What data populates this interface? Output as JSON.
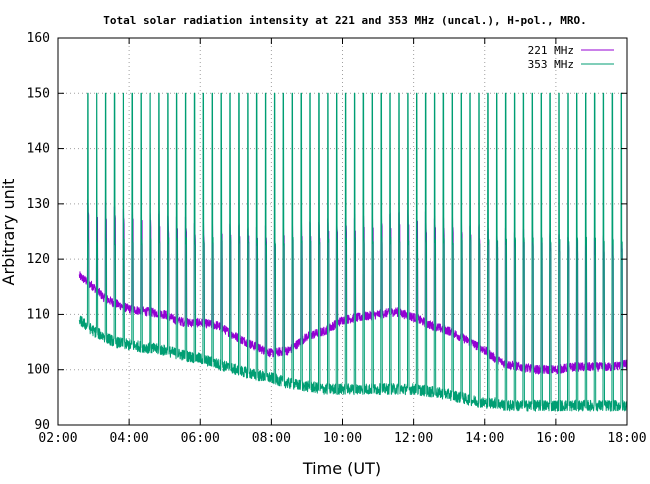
{
  "chart_data": {
    "type": "line",
    "title": "Total solar radiation intensity at 221 and 353 MHz (uncal.), H-pol., MRO.",
    "xlabel": "Time (UT)",
    "ylabel": "Arbitrary unit",
    "x_unit": "hours UT",
    "xlim": [
      2,
      18
    ],
    "ylim": [
      90,
      160
    ],
    "x_ticks": [
      2,
      4,
      6,
      8,
      10,
      12,
      14,
      16,
      18
    ],
    "x_tick_labels": [
      "02:00",
      "04:00",
      "06:00",
      "08:00",
      "10:00",
      "12:00",
      "14:00",
      "16:00",
      "18:00"
    ],
    "y_ticks": [
      90,
      100,
      110,
      120,
      130,
      140,
      150,
      160
    ],
    "y_tick_labels": [
      "90",
      "100",
      "110",
      "120",
      "130",
      "140",
      "150",
      "160"
    ],
    "grid": "dotted",
    "legend_position": "top-right",
    "spikes": {
      "interval_minutes": 15,
      "first_x": 2.83,
      "last_x": 18.0,
      "peak_353": 150,
      "peak_221": [
        [
          2.83,
          131
        ],
        [
          4,
          130
        ],
        [
          6,
          127
        ],
        [
          8,
          126
        ],
        [
          10,
          128
        ],
        [
          12,
          129
        ],
        [
          13,
          128
        ],
        [
          14,
          126
        ],
        [
          16,
          125
        ],
        [
          18,
          124
        ]
      ],
      "calibration_level_353": 124
    },
    "series": [
      {
        "name": "221 MHz",
        "color": "#9400d3",
        "x": [
          2.6,
          2.8,
          3.0,
          3.3,
          3.6,
          4.0,
          4.5,
          5.0,
          5.3,
          5.6,
          6.0,
          6.5,
          7.0,
          7.3,
          7.6,
          8.0,
          8.5,
          9.0,
          9.5,
          10.0,
          10.5,
          11.0,
          11.5,
          12.0,
          12.5,
          13.0,
          13.3,
          13.6,
          14.0,
          14.3,
          14.6,
          15.0,
          15.5,
          16.0,
          16.5,
          17.0,
          17.5,
          18.0
        ],
        "values": [
          117,
          116,
          115,
          113,
          112,
          111,
          110.5,
          110,
          109,
          108.5,
          108.5,
          108,
          106,
          105,
          104,
          103,
          103.5,
          106,
          107,
          109,
          109.5,
          110,
          110.5,
          109.5,
          108,
          107,
          106,
          105,
          103.5,
          102,
          101,
          100.5,
          100,
          100,
          100.5,
          100.5,
          100.5,
          101
        ]
      },
      {
        "name": "353 MHz",
        "color": "#009e73",
        "x": [
          2.6,
          2.8,
          3.0,
          3.3,
          3.6,
          4.0,
          4.5,
          5.0,
          5.3,
          5.6,
          6.0,
          6.5,
          7.0,
          7.3,
          7.6,
          8.0,
          8.5,
          9.0,
          9.5,
          10.0,
          10.5,
          11.0,
          11.5,
          12.0,
          12.5,
          13.0,
          13.3,
          13.6,
          14.0,
          14.3,
          14.6,
          15.0,
          15.5,
          16.0,
          16.5,
          17.0,
          17.5,
          18.0
        ],
        "values": [
          109,
          108,
          107,
          106,
          105,
          104.5,
          104,
          103.5,
          103,
          102.5,
          102,
          101,
          100,
          99.5,
          99,
          98.5,
          97.5,
          97,
          96.5,
          96.5,
          96.5,
          96.5,
          96.5,
          96.5,
          96,
          95.5,
          95,
          94.5,
          94,
          94,
          93.5,
          93.5,
          93.5,
          93.5,
          93.5,
          93.5,
          93.5,
          93.5
        ]
      }
    ]
  }
}
